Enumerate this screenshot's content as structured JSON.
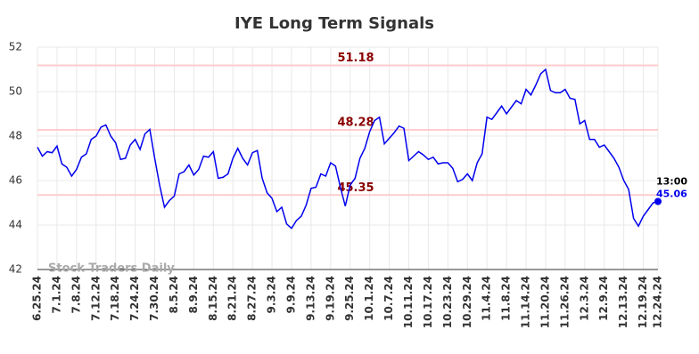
{
  "chart_data": {
    "type": "line",
    "title": "IYE Long Term Signals",
    "categories": [
      "6.25.24",
      null,
      null,
      null,
      "7.1.24",
      null,
      null,
      null,
      "7.8.24",
      null,
      null,
      null,
      "7.12.24",
      null,
      null,
      null,
      "7.18.24",
      null,
      null,
      null,
      "7.24.24",
      null,
      null,
      null,
      "7.30.24",
      null,
      null,
      null,
      "8.5.24",
      null,
      null,
      null,
      "8.9.24",
      null,
      null,
      null,
      "8.15.24",
      null,
      null,
      null,
      "8.21.24",
      null,
      null,
      null,
      "8.27.24",
      null,
      null,
      null,
      "9.3.24",
      null,
      null,
      null,
      "9.9.24",
      null,
      null,
      null,
      "9.13.24",
      null,
      null,
      null,
      "9.19.24",
      null,
      null,
      null,
      "9.25.24",
      null,
      null,
      null,
      "10.1.24",
      null,
      null,
      null,
      "10.7.24",
      null,
      null,
      null,
      "10.11.24",
      null,
      null,
      null,
      "10.17.24",
      null,
      null,
      null,
      "10.23.24",
      null,
      null,
      null,
      "10.29.24",
      null,
      null,
      null,
      "11.4.24",
      null,
      null,
      null,
      "11.8.24",
      null,
      null,
      null,
      "11.14.24",
      null,
      null,
      null,
      "11.20.24",
      null,
      null,
      null,
      "11.26.24",
      null,
      null,
      null,
      "12.3.24",
      null,
      null,
      null,
      "12.9.24",
      null,
      null,
      null,
      "12.13.24",
      null,
      null,
      null,
      "12.19.24",
      null,
      null,
      "12.24.24"
    ],
    "series": [
      {
        "color": "#0000ee",
        "values": [
          47.5,
          47.1,
          47.3,
          47.25,
          47.55,
          46.75,
          46.6,
          46.2,
          46.5,
          47.05,
          47.2,
          47.85,
          48.0,
          48.4,
          48.5,
          48.0,
          47.7,
          46.95,
          47.0,
          47.6,
          47.85,
          47.4,
          48.1,
          48.3,
          47.0,
          45.8,
          44.8,
          45.1,
          45.3,
          46.3,
          46.4,
          46.7,
          46.25,
          46.5,
          47.1,
          47.05,
          47.3,
          46.1,
          46.15,
          46.3,
          47.0,
          47.45,
          47.0,
          46.7,
          47.25,
          47.35,
          46.1,
          45.45,
          45.2,
          44.6,
          44.8,
          44.05,
          43.85,
          44.2,
          44.4,
          44.9,
          45.65,
          45.7,
          46.3,
          46.2,
          46.8,
          46.65,
          45.7,
          44.85,
          45.8,
          46.1,
          47.0,
          47.45,
          48.2,
          48.7,
          48.85,
          47.65,
          47.9,
          48.15,
          48.45,
          48.35,
          46.9,
          47.1,
          47.3,
          47.15,
          46.95,
          47.05,
          46.75,
          46.8,
          46.8,
          46.55,
          45.95,
          46.05,
          46.3,
          46.0,
          46.8,
          47.2,
          48.85,
          48.75,
          49.05,
          49.35,
          49.0,
          49.3,
          49.6,
          49.45,
          50.1,
          49.85,
          50.3,
          50.8,
          51.0,
          50.05,
          49.95,
          49.95,
          50.1,
          49.7,
          49.65,
          48.55,
          48.7,
          47.85,
          47.85,
          47.5,
          47.6,
          47.3,
          47.0,
          46.6,
          46.0,
          45.6,
          44.3,
          43.95,
          44.4,
          44.7,
          45.0,
          45.06
        ]
      }
    ],
    "hlines": [
      {
        "value": 51.18,
        "color": "#ffcccc",
        "label_color": "#8b0000"
      },
      {
        "value": 48.28,
        "color": "#ffcccc",
        "label_color": "#8b0000"
      },
      {
        "value": 45.35,
        "color": "#ffcccc",
        "label_color": "#8b0000"
      }
    ],
    "last_label": "13:00",
    "watermark": "Stock Traders Daily",
    "ylim": [
      42,
      52
    ],
    "yticks": [
      42,
      44,
      46,
      48,
      50,
      52
    ],
    "grid": true
  }
}
